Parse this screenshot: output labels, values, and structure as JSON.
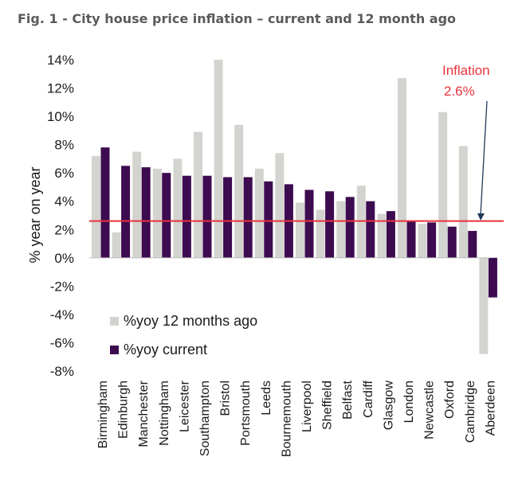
{
  "figure_title": "Fig. 1 - City house price inflation – current and 12 month ago",
  "chart_data": {
    "type": "bar",
    "ylabel": "% year on year",
    "ylim": [
      -8,
      14
    ],
    "yticks": [
      "-8%",
      "-6%",
      "-4%",
      "-2%",
      "0%",
      "2%",
      "4%",
      "6%",
      "8%",
      "10%",
      "12%",
      "14%"
    ],
    "categories": [
      "Birmingham",
      "Edinburgh",
      "Manchester",
      "Nottingham",
      "Leicester",
      "Southampton",
      "Bristol",
      "Portsmouth",
      "Leeds",
      "Bournemouth",
      "Liverpool",
      "Sheffield",
      "Belfast",
      "Cardiff",
      "Glasgow",
      "London",
      "Newcastle",
      "Oxford",
      "Cambridge",
      "Aberdeen"
    ],
    "series": [
      {
        "name": "%yoy 12 months ago",
        "color": "#d3d3cf",
        "values": [
          7.2,
          1.8,
          7.5,
          6.3,
          7.0,
          8.9,
          14.0,
          9.4,
          6.3,
          7.4,
          3.9,
          3.4,
          4.0,
          5.1,
          3.1,
          12.7,
          2.4,
          10.3,
          7.9,
          -6.8
        ]
      },
      {
        "name": "%yoy current",
        "color": "#3d0b4f",
        "values": [
          7.8,
          6.5,
          6.4,
          6.0,
          5.8,
          5.8,
          5.7,
          5.7,
          5.4,
          5.2,
          4.8,
          4.7,
          4.3,
          4.0,
          3.3,
          2.6,
          2.5,
          2.2,
          1.9,
          -2.8
        ]
      }
    ],
    "reference_line": {
      "value": 2.6,
      "color": "#e8323c",
      "label_line1": "Inflation",
      "label_line2": "2.6%"
    },
    "legend_position": "bottom-left",
    "grid": false
  }
}
